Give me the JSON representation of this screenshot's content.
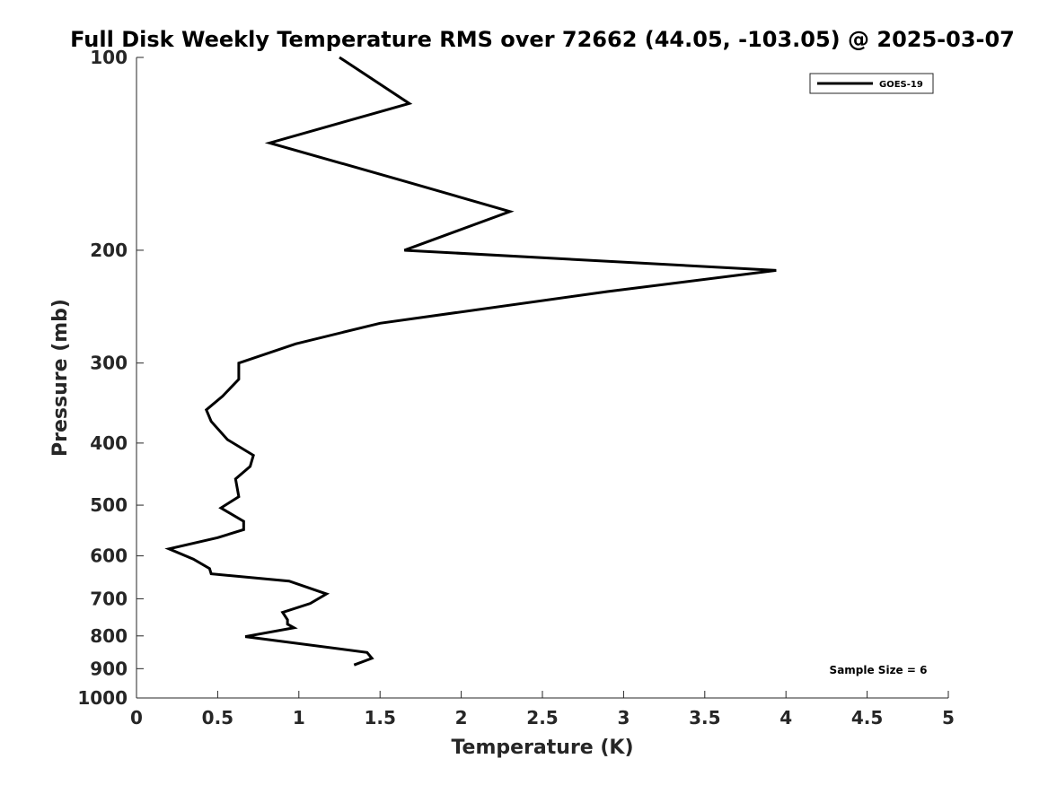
{
  "chart_data": {
    "type": "line",
    "title": "Full Disk Weekly Temperature RMS over 72662 (44.05, -103.05) @ 2025-03-07",
    "xlabel": "Temperature (K)",
    "ylabel": "Pressure (mb)",
    "xlim": [
      0,
      5
    ],
    "ylim": [
      100,
      1000
    ],
    "yscale": "log",
    "y_reversed": true,
    "grid": false,
    "x_ticks": [
      0,
      0.5,
      1,
      1.5,
      2,
      2.5,
      3,
      3.5,
      4,
      4.5,
      5
    ],
    "x_tick_labels": [
      "0",
      "0.5",
      "1",
      "1.5",
      "2",
      "2.5",
      "3",
      "3.5",
      "4",
      "4.5",
      "5"
    ],
    "y_ticks": [
      100,
      200,
      300,
      400,
      500,
      600,
      700,
      800,
      900,
      1000
    ],
    "y_tick_labels": [
      "100",
      "200",
      "300",
      "400",
      "500",
      "600",
      "700",
      "800",
      "900",
      "1000"
    ],
    "legend_position": "top-right",
    "series": [
      {
        "name": "GOES-19",
        "color": "#000000",
        "points": [
          {
            "x": 1.25,
            "y": 100
          },
          {
            "x": 1.68,
            "y": 118
          },
          {
            "x": 0.82,
            "y": 136
          },
          {
            "x": 1.65,
            "y": 156
          },
          {
            "x": 2.3,
            "y": 174
          },
          {
            "x": 1.65,
            "y": 200
          },
          {
            "x": 3.94,
            "y": 215
          },
          {
            "x": 2.9,
            "y": 232
          },
          {
            "x": 1.5,
            "y": 260
          },
          {
            "x": 0.98,
            "y": 280
          },
          {
            "x": 0.63,
            "y": 300
          },
          {
            "x": 0.63,
            "y": 318
          },
          {
            "x": 0.53,
            "y": 338
          },
          {
            "x": 0.43,
            "y": 355
          },
          {
            "x": 0.46,
            "y": 370
          },
          {
            "x": 0.56,
            "y": 395
          },
          {
            "x": 0.72,
            "y": 418
          },
          {
            "x": 0.7,
            "y": 435
          },
          {
            "x": 0.61,
            "y": 455
          },
          {
            "x": 0.63,
            "y": 485
          },
          {
            "x": 0.52,
            "y": 505
          },
          {
            "x": 0.66,
            "y": 530
          },
          {
            "x": 0.66,
            "y": 546
          },
          {
            "x": 0.5,
            "y": 562
          },
          {
            "x": 0.2,
            "y": 585
          },
          {
            "x": 0.35,
            "y": 607
          },
          {
            "x": 0.45,
            "y": 628
          },
          {
            "x": 0.46,
            "y": 640
          },
          {
            "x": 0.94,
            "y": 657
          },
          {
            "x": 1.17,
            "y": 688
          },
          {
            "x": 1.07,
            "y": 712
          },
          {
            "x": 0.9,
            "y": 735
          },
          {
            "x": 0.93,
            "y": 755
          },
          {
            "x": 0.93,
            "y": 767
          },
          {
            "x": 0.97,
            "y": 777
          },
          {
            "x": 0.67,
            "y": 802
          },
          {
            "x": 1.42,
            "y": 849
          },
          {
            "x": 1.45,
            "y": 867
          },
          {
            "x": 1.34,
            "y": 888
          }
        ]
      }
    ],
    "annotations": [
      "Sample Size = 6"
    ]
  }
}
